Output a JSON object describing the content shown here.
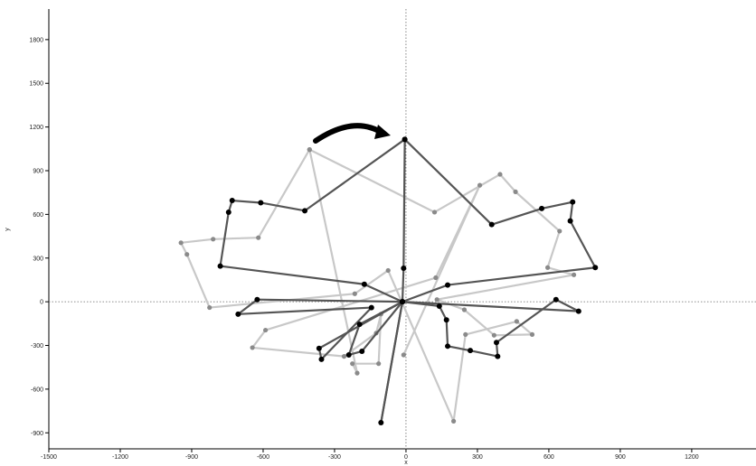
{
  "chart_data": {
    "type": "line",
    "title": "",
    "xlabel": "x",
    "ylabel": "y",
    "xlim": [
      -1500,
      1470
    ],
    "ylim": [
      -1010,
      2010
    ],
    "x_ticks": [
      -1500,
      -1200,
      -900,
      -600,
      -300,
      0,
      300,
      600,
      900,
      1200
    ],
    "y_ticks": [
      -900,
      -600,
      -300,
      0,
      300,
      600,
      900,
      1200,
      1500,
      1800
    ],
    "grid": false,
    "origin_reference_lines": true,
    "annotation": "curved arrow indicating clockwise rotation",
    "series": [
      {
        "role": "original shape",
        "color": "#c8c8c8",
        "marker_color": "#8a8a8a",
        "points": [
          [
            -405,
            1045
          ],
          [
            120,
            615
          ],
          [
            395,
            875
          ],
          [
            460,
            755
          ],
          [
            645,
            485
          ],
          [
            595,
            235
          ],
          [
            705,
            185
          ],
          [
            130,
            15
          ],
          [
            245,
            -55
          ],
          [
            370,
            -230
          ],
          [
            530,
            -225
          ],
          [
            465,
            -135
          ],
          [
            250,
            -225
          ],
          [
            200,
            -820
          ],
          [
            -75,
            215
          ],
          [
            -215,
            55
          ],
          [
            -825,
            -40
          ],
          [
            -920,
            325
          ],
          [
            -945,
            405
          ],
          [
            -810,
            430
          ],
          [
            -620,
            440
          ],
          [
            -405,
            1045
          ],
          [
            -205,
            -490
          ],
          [
            -225,
            -425
          ],
          [
            -115,
            -425
          ],
          [
            -105,
            -85
          ],
          [
            -125,
            -215
          ],
          [
            -260,
            -375
          ],
          [
            -645,
            -315
          ],
          [
            -590,
            -195
          ],
          [
            125,
            165
          ],
          [
            310,
            800
          ],
          [
            -10,
            -365
          ]
        ]
      },
      {
        "role": "rotated shape",
        "color": "#555555",
        "marker_color": "#000000",
        "points": [
          [
            -5,
            1115
          ],
          [
            -425,
            625
          ],
          [
            -610,
            680
          ],
          [
            -730,
            695
          ],
          [
            -745,
            615
          ],
          [
            -780,
            245
          ],
          [
            -175,
            120
          ],
          [
            -15,
            0
          ],
          [
            -625,
            15
          ],
          [
            -705,
            -85
          ],
          [
            -145,
            -40
          ],
          [
            -355,
            -395
          ],
          [
            -365,
            -320
          ],
          [
            -15,
            0
          ],
          [
            -105,
            -830
          ],
          [
            -15,
            0
          ],
          [
            -185,
            -340
          ],
          [
            -240,
            -365
          ],
          [
            -195,
            -155
          ],
          [
            -15,
            0
          ],
          [
            175,
            115
          ],
          [
            795,
            235
          ],
          [
            690,
            555
          ],
          [
            700,
            685
          ],
          [
            570,
            640
          ],
          [
            360,
            530
          ],
          [
            -5,
            1115
          ],
          [
            -10,
            230
          ],
          [
            -15,
            0
          ],
          [
            140,
            -30
          ],
          [
            170,
            -125
          ],
          [
            175,
            -305
          ],
          [
            270,
            -335
          ],
          [
            385,
            -375
          ],
          [
            380,
            -280
          ],
          [
            630,
            15
          ],
          [
            725,
            -65
          ],
          [
            -15,
            0
          ]
        ]
      }
    ]
  }
}
